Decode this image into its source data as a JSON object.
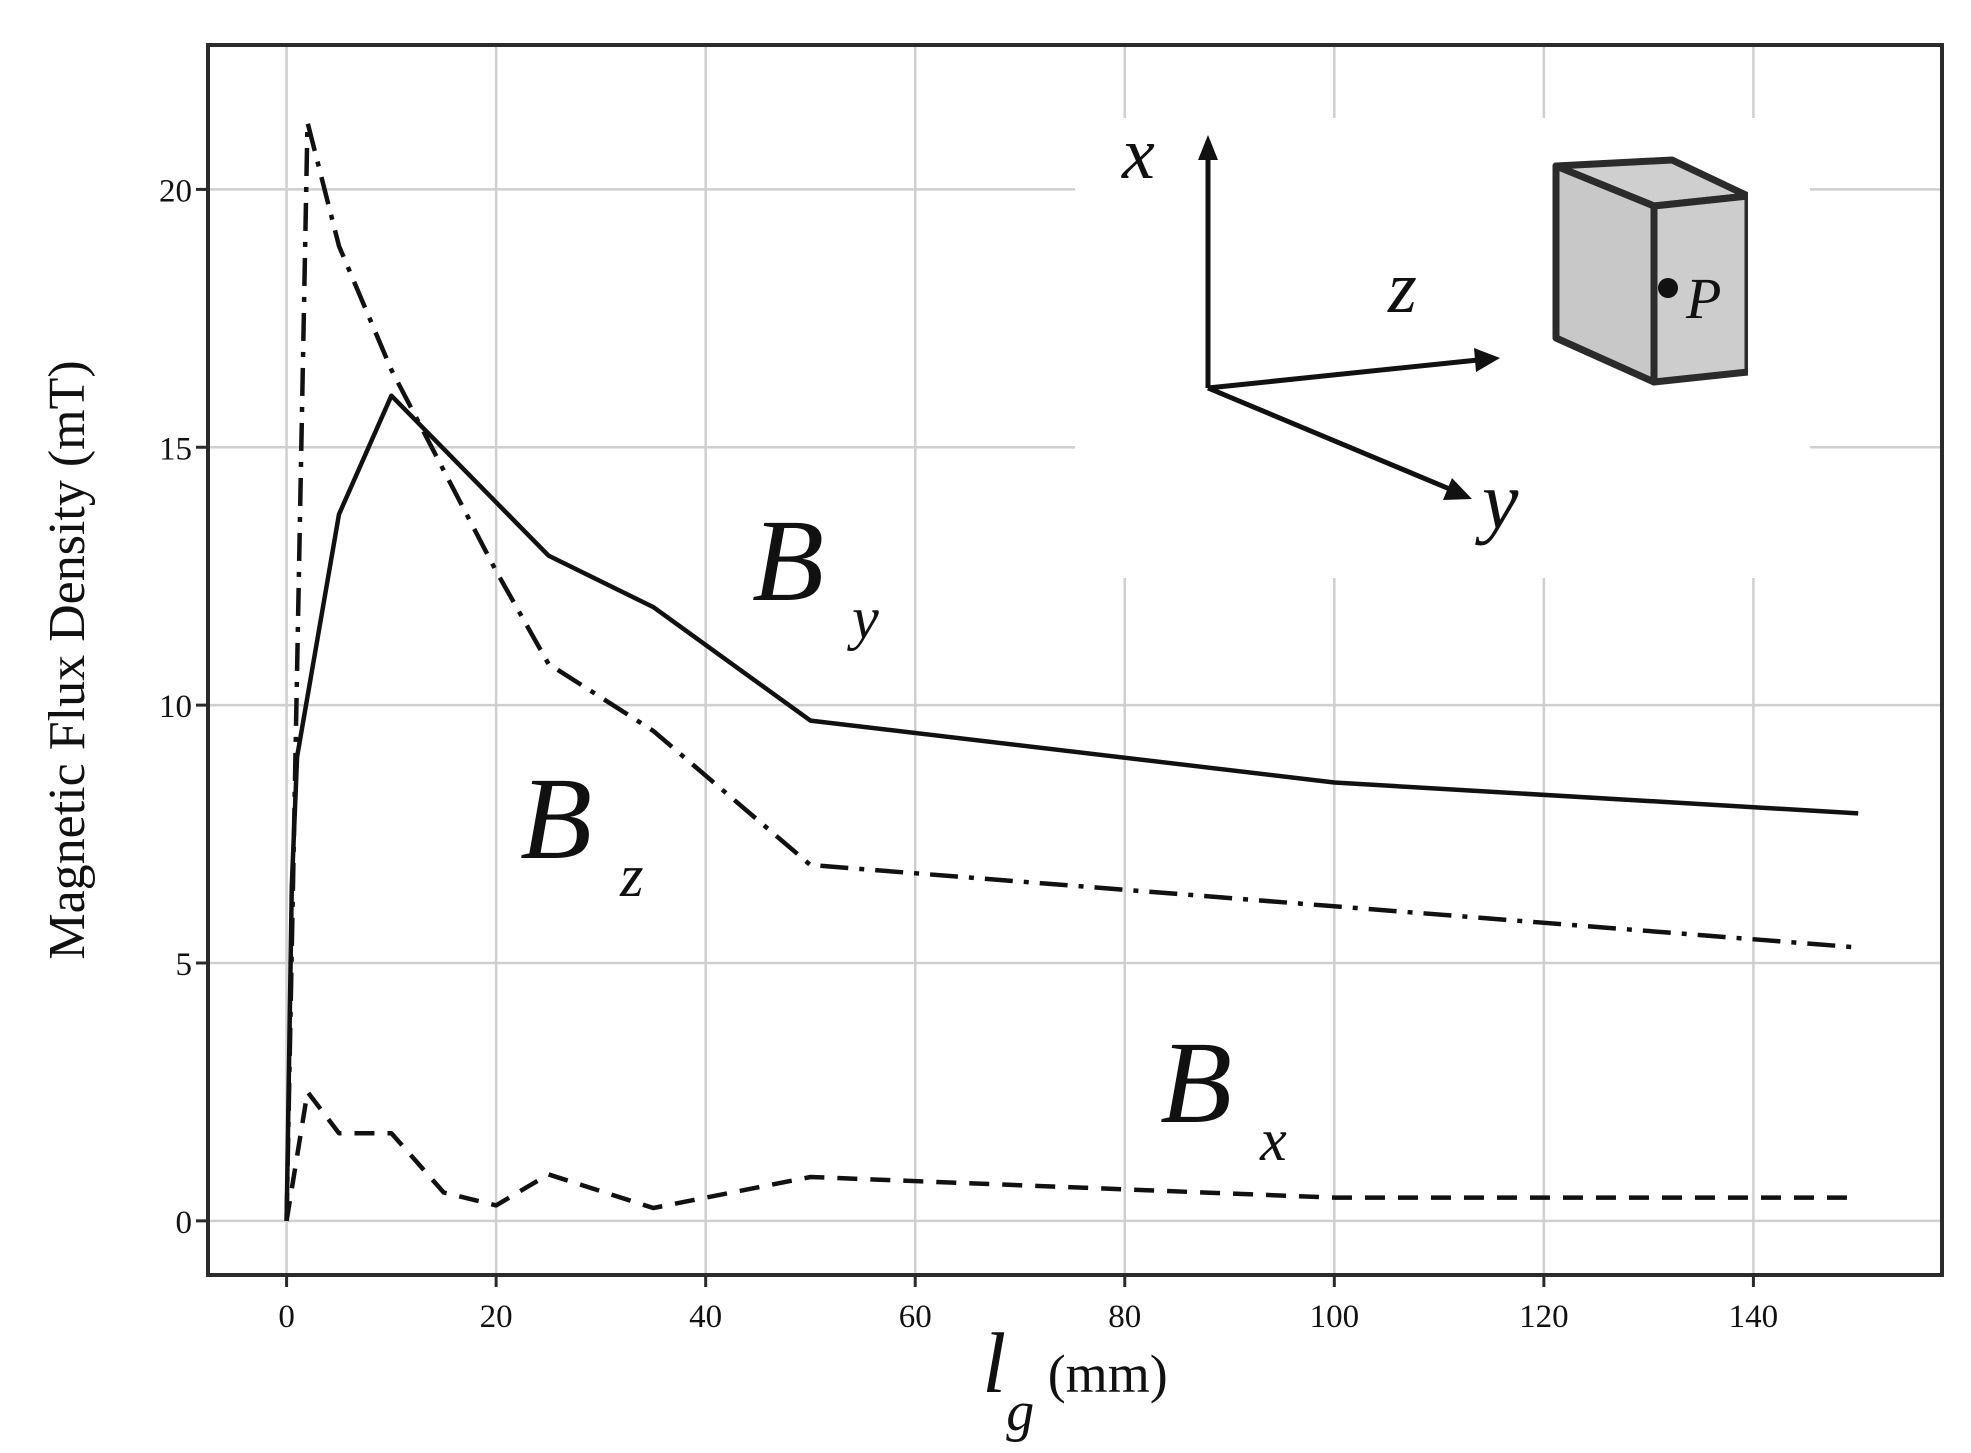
{
  "chart_data": {
    "type": "line",
    "xlabel": {
      "main": "l",
      "sub": "g",
      "unit": " (mm)"
    },
    "ylabel": "Magnetic Flux Density (mT)",
    "xlim": [
      -7.5,
      158
    ],
    "ylim": [
      -1.05,
      22.8
    ],
    "xticks": [
      0,
      20,
      40,
      60,
      80,
      100,
      120,
      140
    ],
    "yticks": [
      0,
      5,
      10,
      15,
      20
    ],
    "grid": true,
    "series": [
      {
        "name": "By",
        "label_main": "B",
        "label_sub": "y",
        "dash": "solid",
        "x": [
          0,
          0.5,
          1,
          5,
          10,
          25,
          35,
          50,
          100,
          150
        ],
        "y": [
          0,
          6.5,
          9,
          13.7,
          16,
          12.9,
          11.9,
          9.7,
          8.5,
          7.9
        ]
      },
      {
        "name": "Bz",
        "label_main": "B",
        "label_sub": "z",
        "dash": "dashdot",
        "x": [
          0,
          2,
          5,
          10,
          20,
          25,
          35,
          50,
          100,
          150
        ],
        "y": [
          0,
          21.3,
          18.9,
          16.5,
          12.6,
          10.8,
          9.5,
          6.9,
          6.1,
          5.3
        ]
      },
      {
        "name": "Bx",
        "label_main": "B",
        "label_sub": "x",
        "dash": "dashed",
        "x": [
          0,
          2,
          5,
          10,
          15,
          20,
          25,
          35,
          50,
          100,
          150
        ],
        "y": [
          0,
          2.5,
          1.7,
          1.7,
          0.55,
          0.3,
          0.9,
          0.25,
          0.85,
          0.45,
          0.45
        ]
      }
    ],
    "inset": {
      "axis_x": "x",
      "axis_y": "y",
      "axis_z": "z",
      "point": "P"
    }
  }
}
